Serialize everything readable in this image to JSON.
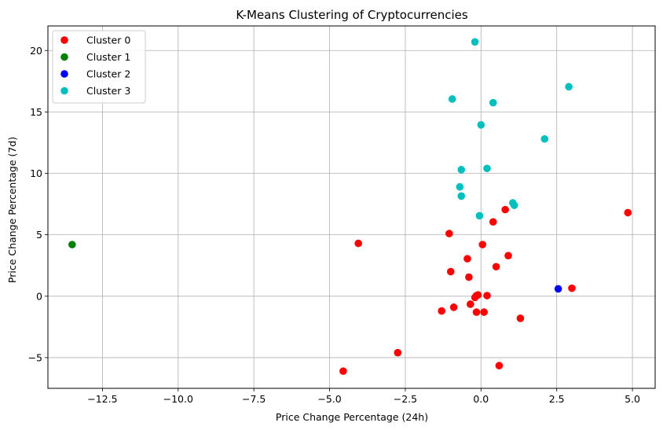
{
  "chart_data": {
    "type": "scatter",
    "title": "K-Means Clustering of Cryptocurrencies",
    "xlabel": "Price Change Percentage (24h)",
    "ylabel": "Price Change Percentage (7d)",
    "xlim": [
      -14.3,
      5.75
    ],
    "ylim": [
      -7.5,
      22.0
    ],
    "xticks": [
      {
        "value": -12.5,
        "label": "−12.5"
      },
      {
        "value": -10.0,
        "label": "−10.0"
      },
      {
        "value": -7.5,
        "label": "−7.5"
      },
      {
        "value": -5.0,
        "label": "−5.0"
      },
      {
        "value": -2.5,
        "label": "−2.5"
      },
      {
        "value": 0.0,
        "label": "0.0"
      },
      {
        "value": 2.5,
        "label": "2.5"
      },
      {
        "value": 5.0,
        "label": "5.0"
      }
    ],
    "yticks": [
      {
        "value": -5,
        "label": "−5"
      },
      {
        "value": 0,
        "label": "0"
      },
      {
        "value": 5,
        "label": "5"
      },
      {
        "value": 10,
        "label": "10"
      },
      {
        "value": 15,
        "label": "15"
      },
      {
        "value": 20,
        "label": "20"
      }
    ],
    "grid": true,
    "legend_position": "top-left",
    "series": [
      {
        "name": "Cluster 0",
        "color": "#ff0000",
        "points": [
          [
            -4.05,
            4.3
          ],
          [
            -2.75,
            -4.6
          ],
          [
            -4.55,
            -6.1
          ],
          [
            -1.05,
            5.1
          ],
          [
            -1.0,
            2.0
          ],
          [
            -1.3,
            -1.2
          ],
          [
            -0.9,
            -0.9
          ],
          [
            -0.45,
            3.05
          ],
          [
            -0.4,
            1.55
          ],
          [
            -0.35,
            -0.65
          ],
          [
            -0.2,
            -0.1
          ],
          [
            -0.15,
            0.05
          ],
          [
            -0.1,
            0.1
          ],
          [
            -0.15,
            -1.3
          ],
          [
            0.05,
            4.2
          ],
          [
            0.1,
            -1.3
          ],
          [
            0.2,
            0.05
          ],
          [
            0.4,
            6.05
          ],
          [
            0.5,
            2.4
          ],
          [
            0.6,
            -5.65
          ],
          [
            0.8,
            7.05
          ],
          [
            0.9,
            3.3
          ],
          [
            1.3,
            -1.8
          ],
          [
            3.0,
            0.65
          ],
          [
            4.85,
            6.8
          ]
        ]
      },
      {
        "name": "Cluster 1",
        "color": "#008000",
        "points": [
          [
            -13.5,
            4.2
          ]
        ]
      },
      {
        "name": "Cluster 2",
        "color": "#0000ff",
        "points": [
          [
            2.55,
            0.6
          ]
        ]
      },
      {
        "name": "Cluster 3",
        "color": "#00bfbf",
        "points": [
          [
            -0.2,
            20.7
          ],
          [
            -0.95,
            16.05
          ],
          [
            0.4,
            15.75
          ],
          [
            0.0,
            13.95
          ],
          [
            2.9,
            17.05
          ],
          [
            2.1,
            12.8
          ],
          [
            -0.65,
            10.3
          ],
          [
            0.2,
            10.4
          ],
          [
            -0.7,
            8.9
          ],
          [
            -0.65,
            8.15
          ],
          [
            1.05,
            7.6
          ],
          [
            1.1,
            7.4
          ],
          [
            -0.05,
            6.55
          ]
        ]
      }
    ]
  }
}
